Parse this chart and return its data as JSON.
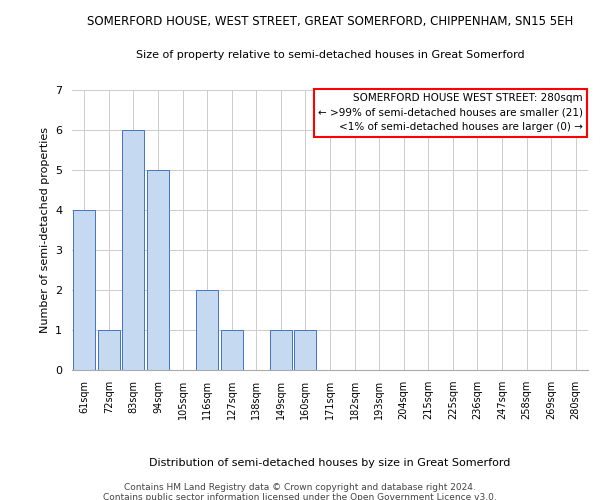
{
  "title": "SOMERFORD HOUSE, WEST STREET, GREAT SOMERFORD, CHIPPENHAM, SN15 5EH",
  "subtitle": "Size of property relative to semi-detached houses in Great Somerford",
  "xlabel": "Distribution of semi-detached houses by size in Great Somerford",
  "ylabel": "Number of semi-detached properties",
  "categories": [
    "61sqm",
    "72sqm",
    "83sqm",
    "94sqm",
    "105sqm",
    "116sqm",
    "127sqm",
    "138sqm",
    "149sqm",
    "160sqm",
    "171sqm",
    "182sqm",
    "193sqm",
    "204sqm",
    "215sqm",
    "225sqm",
    "236sqm",
    "247sqm",
    "258sqm",
    "269sqm",
    "280sqm"
  ],
  "values": [
    4,
    1,
    6,
    5,
    0,
    2,
    1,
    0,
    1,
    1,
    0,
    0,
    0,
    0,
    0,
    0,
    0,
    0,
    0,
    0,
    0
  ],
  "bar_color": "#c5d9f1",
  "bar_edge_color": "#4472c4",
  "ylim": [
    0,
    7
  ],
  "yticks": [
    0,
    1,
    2,
    3,
    4,
    5,
    6,
    7
  ],
  "legend_title": "SOMERFORD HOUSE WEST STREET: 280sqm",
  "legend_line1": "← >99% of semi-detached houses are smaller (21)",
  "legend_line2": "<1% of semi-detached houses are larger (0) →",
  "footer_line1": "Contains HM Land Registry data © Crown copyright and database right 2024.",
  "footer_line2": "Contains public sector information licensed under the Open Government Licence v3.0.",
  "background_color": "#ffffff",
  "grid_color": "#cccccc",
  "legend_box_color": "#ff0000",
  "title_fontsize": 8.5,
  "subtitle_fontsize": 8,
  "ylabel_fontsize": 8,
  "xtick_fontsize": 7,
  "ytick_fontsize": 8,
  "legend_fontsize": 7.5,
  "xlabel_fontsize": 8,
  "footer_fontsize": 6.5
}
